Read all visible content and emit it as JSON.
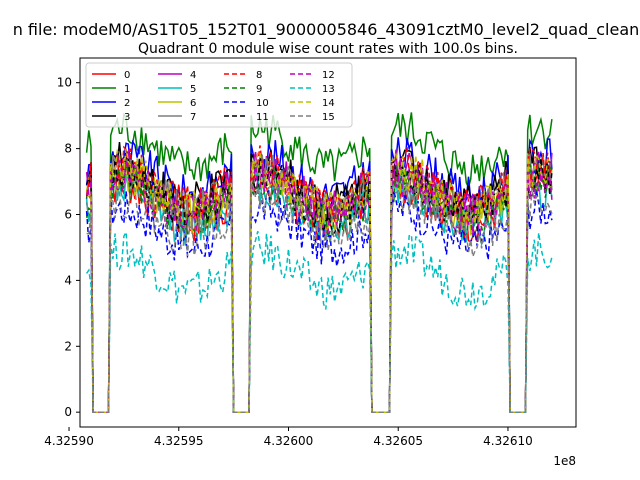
{
  "chart_data": {
    "type": "line",
    "suptitle": "n file: modeM0/AS1T05_152T01_9000005846_43091cztM0_level2_quad_clean",
    "title": "Quadrant 0 module wise count rates with 100.0s bins.",
    "xlabel": "",
    "ylabel": "",
    "x_offset_label": "1e8",
    "xlim": [
      4.325905,
      4.326131
    ],
    "ylim": [
      -0.45,
      10.75
    ],
    "xticks": [
      4.3259,
      4.32595,
      4.326,
      4.32605,
      4.3261
    ],
    "xtick_labels": [
      "4.32590",
      "4.32595",
      "4.32600",
      "4.32605",
      "4.32610"
    ],
    "yticks": [
      0,
      2,
      4,
      6,
      8,
      10
    ],
    "ytick_labels": [
      "0",
      "2",
      "4",
      "6",
      "8",
      "10"
    ],
    "grid": false,
    "legend_position": "upper-left",
    "legend_columns": 4,
    "segments_x_note": "x in units of 1e8 s",
    "active_windows": [
      [
        4.325922,
        4.325972
      ],
      [
        4.325986,
        4.326035
      ],
      [
        4.32605,
        4.326098
      ],
      [
        4.326112,
        4.32612
      ]
    ],
    "gaps": [
      [
        4.325911,
        4.325919
      ],
      [
        4.325975,
        4.325983
      ],
      [
        4.326038,
        4.326047
      ],
      [
        4.326101,
        4.326109
      ]
    ],
    "series": [
      {
        "name": "0",
        "color": "#ff0000",
        "dash": "solid",
        "base": 6.3
      },
      {
        "name": "1",
        "color": "#008000",
        "dash": "solid",
        "base": 8.0
      },
      {
        "name": "2",
        "color": "#0000ff",
        "dash": "solid",
        "base": 7.2
      },
      {
        "name": "3",
        "color": "#000000",
        "dash": "solid",
        "base": 7.0
      },
      {
        "name": "4",
        "color": "#bf00bf",
        "dash": "solid",
        "base": 6.8
      },
      {
        "name": "5",
        "color": "#00bfbf",
        "dash": "solid",
        "base": 6.2
      },
      {
        "name": "6",
        "color": "#bfbf00",
        "dash": "solid",
        "base": 6.6
      },
      {
        "name": "7",
        "color": "#7f7f7f",
        "dash": "solid",
        "base": 6.7
      },
      {
        "name": "8",
        "color": "#ff0000",
        "dash": "dashed",
        "base": 6.9
      },
      {
        "name": "9",
        "color": "#008000",
        "dash": "dashed",
        "base": 6.4
      },
      {
        "name": "10",
        "color": "#0000ff",
        "dash": "dashed",
        "base": 5.6
      },
      {
        "name": "11",
        "color": "#000000",
        "dash": "dashed",
        "base": 6.6
      },
      {
        "name": "12",
        "color": "#bf00bf",
        "dash": "dashed",
        "base": 6.5
      },
      {
        "name": "13",
        "color": "#00bfbf",
        "dash": "dashed",
        "base": 4.3
      },
      {
        "name": "14",
        "color": "#bfbf00",
        "dash": "dashed",
        "base": 6.8
      },
      {
        "name": "15",
        "color": "#7f7f7f",
        "dash": "dashed",
        "base": 5.9
      }
    ]
  }
}
